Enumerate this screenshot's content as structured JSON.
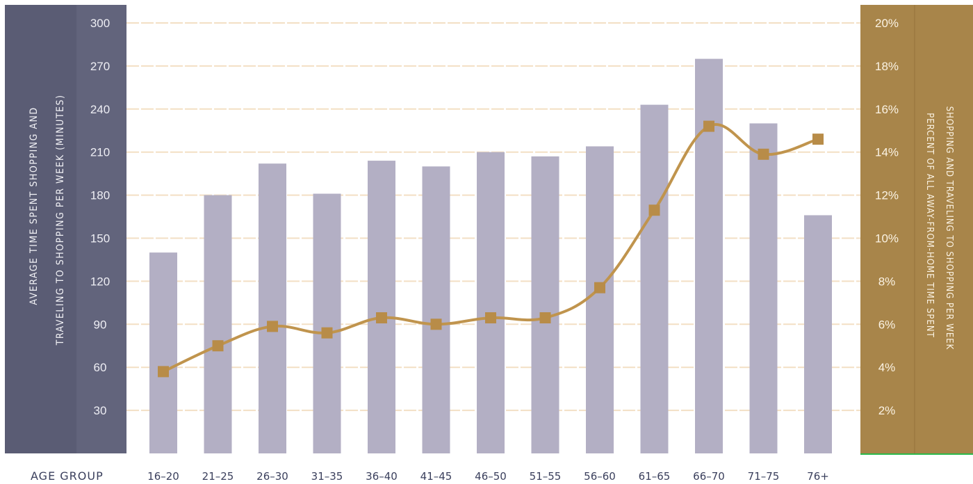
{
  "colors": {
    "left_panel": "#5a5c74",
    "left_panel_inner": "#62647c",
    "right_panel": "#a8854a",
    "bar": "#b3afc4",
    "line": "#c0944d",
    "marker": "#b88c48",
    "gridline": "#f3dfc4",
    "baseline_green": "#2bb84a"
  },
  "chart_data": {
    "type": "bar",
    "categories": [
      "16–20",
      "21–25",
      "26–30",
      "31–35",
      "36–40",
      "41–45",
      "46–50",
      "51–55",
      "56–60",
      "61–65",
      "66–70",
      "71–75",
      "76+"
    ],
    "series": [
      {
        "axis": "left",
        "chart": "bar",
        "values": [
          140,
          180,
          202,
          181,
          204,
          200,
          210,
          207,
          214,
          243,
          275,
          230,
          166
        ]
      },
      {
        "axis": "right",
        "chart": "line",
        "values": [
          3.8,
          5.0,
          5.9,
          5.6,
          6.3,
          6.0,
          6.3,
          6.3,
          7.7,
          11.3,
          15.2,
          13.9,
          14.6
        ]
      }
    ],
    "y_left": {
      "ticks": [
        "300",
        "270",
        "240",
        "210",
        "180",
        "150",
        "120",
        "90",
        "60",
        "30"
      ],
      "ylim": [
        0,
        300
      ]
    },
    "y_right": {
      "ticks": [
        "20%",
        "18%",
        "16%",
        "14%",
        "12%",
        "10%",
        "8%",
        "6%",
        "4%",
        "2%"
      ],
      "ylim": [
        0,
        20
      ]
    },
    "ylabel_left_line1": "AVERAGE TIME SPENT SHOPPING AND",
    "ylabel_left_line2": "TRAVELING TO SHOPPING PER WEEK (MINUTES)",
    "ylabel_right_line1": "PERCENT OF ALL AWAY-FROM-HOME TIME SPENT",
    "ylabel_right_line2": "SHOPPING AND TRAVELING TO SHOPPING PER WEEK",
    "xlabel": "AGE GROUP",
    "grid": true
  }
}
